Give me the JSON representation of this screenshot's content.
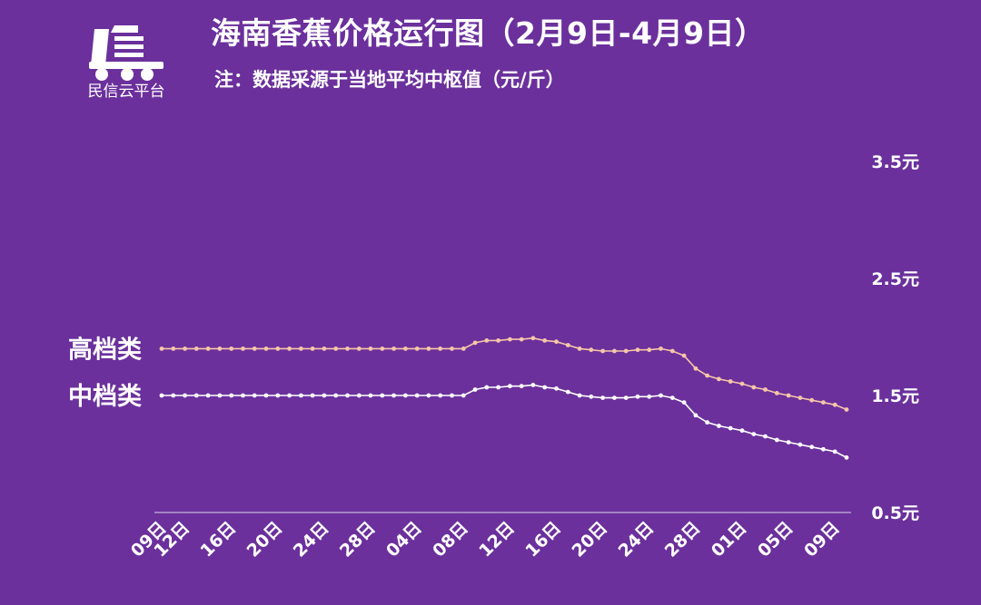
{
  "header": {
    "title": "海南香蕉价格运行图（2月9日-4月9日）",
    "subtitle": "注：数据采源于当地平均中枢值（元/斤）",
    "logo_text": "民信云平台",
    "logo_icon": "truck-logo-icon"
  },
  "colors": {
    "background": "#6b309c",
    "high_line": "#f6c7a8",
    "mid_line": "#ffffff",
    "axis": "#b89ad0"
  },
  "chart_data": {
    "type": "line",
    "title": "海南香蕉价格运行图（2月9日-4月9日）",
    "subtitle": "注：数据采源于当地平均中枢值（元/斤）",
    "xlabel": "",
    "ylabel": "",
    "ylim": [
      0.5,
      3.5
    ],
    "yaxis_position": "right",
    "y_ticks": [
      0.5,
      1.5,
      2.5,
      3.5
    ],
    "y_tick_labels": [
      "0.5元",
      "1.5元",
      "2.5元",
      "3.5元"
    ],
    "x_tick_labels": [
      "09日",
      "12日",
      "16日",
      "20日",
      "24日",
      "28日",
      "04日",
      "08日",
      "12日",
      "16日",
      "20日",
      "24日",
      "28日",
      "01日",
      "05日",
      "09日"
    ],
    "x_tick_index": [
      0,
      2,
      6,
      10,
      14,
      18,
      22,
      26,
      30,
      34,
      38,
      42,
      46,
      50,
      54,
      58
    ],
    "grid": false,
    "series": [
      {
        "name": "高档类",
        "values": [
          1.9,
          1.9,
          1.9,
          1.9,
          1.9,
          1.9,
          1.9,
          1.9,
          1.9,
          1.9,
          1.9,
          1.9,
          1.9,
          1.9,
          1.9,
          1.9,
          1.9,
          1.9,
          1.9,
          1.9,
          1.9,
          1.9,
          1.9,
          1.9,
          1.9,
          1.9,
          1.9,
          1.95,
          1.97,
          1.97,
          1.98,
          1.98,
          1.99,
          1.97,
          1.96,
          1.93,
          1.9,
          1.89,
          1.88,
          1.88,
          1.88,
          1.89,
          1.89,
          1.9,
          1.88,
          1.84,
          1.73,
          1.67,
          1.64,
          1.62,
          1.6,
          1.57,
          1.55,
          1.52,
          1.5,
          1.48,
          1.46,
          1.44,
          1.42,
          1.38
        ]
      },
      {
        "name": "中档类",
        "values": [
          1.5,
          1.5,
          1.5,
          1.5,
          1.5,
          1.5,
          1.5,
          1.5,
          1.5,
          1.5,
          1.5,
          1.5,
          1.5,
          1.5,
          1.5,
          1.5,
          1.5,
          1.5,
          1.5,
          1.5,
          1.5,
          1.5,
          1.5,
          1.5,
          1.5,
          1.5,
          1.5,
          1.55,
          1.57,
          1.57,
          1.58,
          1.58,
          1.59,
          1.57,
          1.56,
          1.53,
          1.5,
          1.49,
          1.48,
          1.48,
          1.48,
          1.49,
          1.49,
          1.5,
          1.48,
          1.44,
          1.33,
          1.27,
          1.24,
          1.22,
          1.2,
          1.17,
          1.15,
          1.12,
          1.1,
          1.08,
          1.06,
          1.04,
          1.02,
          0.97
        ]
      }
    ]
  }
}
